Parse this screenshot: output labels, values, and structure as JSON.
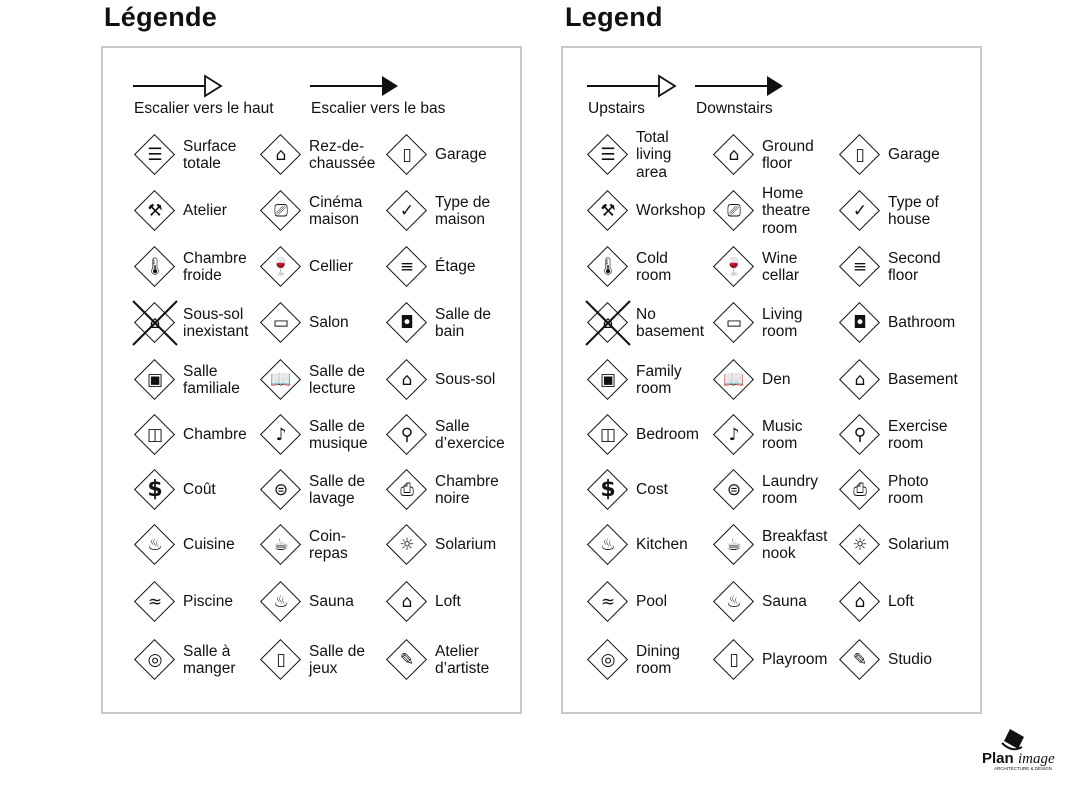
{
  "french": {
    "title": "Légende",
    "stairs_up": "Escalier vers le haut",
    "stairs_down": "Escalier vers le bas",
    "items": [
      {
        "label": "Surface\ntotale",
        "icon": "house-layers-icon"
      },
      {
        "label": "Rez-de-\nchaussée",
        "icon": "ground-floor-icon"
      },
      {
        "label": "Garage",
        "icon": "car-icon"
      },
      {
        "label": "Atelier",
        "icon": "hammer-icon"
      },
      {
        "label": "Cinéma\nmaison",
        "icon": "projector-icon"
      },
      {
        "label": "Type de\nmaison",
        "icon": "checkmark-house-icon"
      },
      {
        "label": "Chambre\nfroide",
        "icon": "thermometer-icon"
      },
      {
        "label": "Cellier",
        "icon": "wine-icon"
      },
      {
        "label": "Étage",
        "icon": "second-floor-icon"
      },
      {
        "label": "Sous-sol\ninexistant",
        "icon": "no-basement-icon"
      },
      {
        "label": "Salon",
        "icon": "sofa-icon"
      },
      {
        "label": "Salle de\nbain",
        "icon": "toilet-icon"
      },
      {
        "label": "Salle\nfamiliale",
        "icon": "tv-icon"
      },
      {
        "label": "Salle de\nlecture",
        "icon": "book-icon"
      },
      {
        "label": "Sous-sol",
        "icon": "basement-icon"
      },
      {
        "label": "Chambre",
        "icon": "bed-icon"
      },
      {
        "label": "Salle de\nmusique",
        "icon": "music-note-icon"
      },
      {
        "label": "Salle\nd’exercice",
        "icon": "barbell-icon"
      },
      {
        "label": "Coût",
        "icon": "dollar-icon"
      },
      {
        "label": "Salle de\nlavage",
        "icon": "washer-icon"
      },
      {
        "label": "Chambre\nnoire",
        "icon": "camera-icon"
      },
      {
        "label": "Cuisine",
        "icon": "pot-icon"
      },
      {
        "label": "Coin-\nrepas",
        "icon": "coffee-cup-icon"
      },
      {
        "label": "Solarium",
        "icon": "sun-icon"
      },
      {
        "label": "Piscine",
        "icon": "swimmer-icon"
      },
      {
        "label": "Sauna",
        "icon": "sauna-icon"
      },
      {
        "label": "Loft",
        "icon": "loft-icon"
      },
      {
        "label": "Salle à\nmanger",
        "icon": "plate-icon"
      },
      {
        "label": "Salle de\njeux",
        "icon": "door-icon"
      },
      {
        "label": "Atelier\nd’artiste",
        "icon": "palette-icon"
      }
    ]
  },
  "english": {
    "title": "Legend",
    "stairs_up": "Upstairs",
    "stairs_down": "Downstairs",
    "items": [
      {
        "label": "Total\nliving\narea",
        "icon": "house-layers-icon"
      },
      {
        "label": "Ground\nfloor",
        "icon": "ground-floor-icon"
      },
      {
        "label": "Garage",
        "icon": "car-icon"
      },
      {
        "label": "Workshop",
        "icon": "hammer-icon"
      },
      {
        "label": "Home\ntheatre\nroom",
        "icon": "projector-icon"
      },
      {
        "label": "Type of\nhouse",
        "icon": "checkmark-house-icon"
      },
      {
        "label": "Cold\nroom",
        "icon": "thermometer-icon"
      },
      {
        "label": "Wine\ncellar",
        "icon": "wine-icon"
      },
      {
        "label": "Second\nfloor",
        "icon": "second-floor-icon"
      },
      {
        "label": "No\nbasement",
        "icon": "no-basement-icon"
      },
      {
        "label": "Living\nroom",
        "icon": "sofa-icon"
      },
      {
        "label": "Bathroom",
        "icon": "toilet-icon"
      },
      {
        "label": "Family\nroom",
        "icon": "tv-icon"
      },
      {
        "label": "Den",
        "icon": "book-icon"
      },
      {
        "label": "Basement",
        "icon": "basement-icon"
      },
      {
        "label": "Bedroom",
        "icon": "bed-icon"
      },
      {
        "label": "Music\nroom",
        "icon": "music-note-icon"
      },
      {
        "label": "Exercise\nroom",
        "icon": "barbell-icon"
      },
      {
        "label": "Cost",
        "icon": "dollar-icon"
      },
      {
        "label": "Laundry\nroom",
        "icon": "washer-icon"
      },
      {
        "label": "Photo\nroom",
        "icon": "camera-icon"
      },
      {
        "label": "Kitchen",
        "icon": "pot-icon"
      },
      {
        "label": "Breakfast\nnook",
        "icon": "coffee-cup-icon"
      },
      {
        "label": "Solarium",
        "icon": "sun-icon"
      },
      {
        "label": "Pool",
        "icon": "swimmer-icon"
      },
      {
        "label": "Sauna",
        "icon": "sauna-icon"
      },
      {
        "label": "Loft",
        "icon": "loft-icon"
      },
      {
        "label": "Dining\nroom",
        "icon": "plate-icon"
      },
      {
        "label": "Playroom",
        "icon": "door-icon"
      },
      {
        "label": "Studio",
        "icon": "palette-icon"
      }
    ]
  },
  "logo": {
    "name": "PlanImage",
    "tagline": "ARCHITECTURE & DESIGN"
  }
}
